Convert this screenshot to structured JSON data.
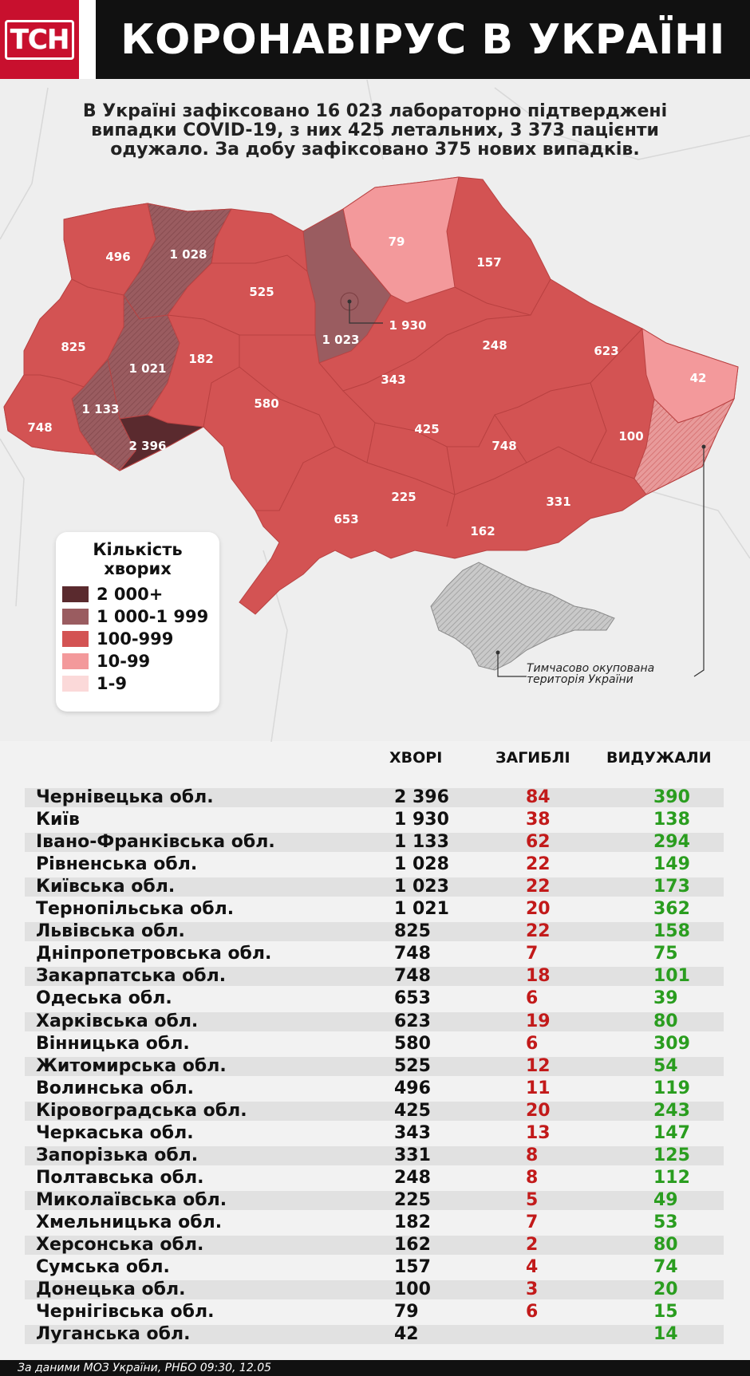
{
  "header": {
    "logo": "ТСН",
    "title": "КОРОНАВІРУС В УКРАЇНІ"
  },
  "intro": {
    "line1": "В Україні зафіксовано 16 023 лабораторно підтверджені",
    "line2": "випадки COVID-19, з них 425 летальних, 3 373 пацієнти",
    "line3": "одужало. За добу зафіксовано 375 нових випадків."
  },
  "map": {
    "labels": {
      "volyn": "496",
      "rivne": "1 028",
      "zhytomyr": "525",
      "kyiv_obl": "1 023",
      "kyiv_city": "1 930",
      "chernihiv": "79",
      "sumy": "157",
      "lviv": "825",
      "ternopil": "1 021",
      "khmelnytskyi": "182",
      "ivano_frankivsk": "1 133",
      "zakarpattia": "748",
      "chernivtsi": "2 396",
      "vinnytsia": "580",
      "cherkasy": "343",
      "poltava": "248",
      "kharkiv": "623",
      "luhansk": "42",
      "kirovohrad": "425",
      "dnipro": "748",
      "donetsk": "100",
      "odesa": "653",
      "mykolaiv": "225",
      "zaporizhzhia": "331",
      "kherson": "162"
    },
    "colors": {
      "c2000": "#5a2a2e",
      "c1000": "#9a5c60",
      "c100": "#d35353",
      "c10": "#f3999b",
      "c1": "#fbd9d9",
      "occupied": "#bdbdbd"
    },
    "occupied_note_line1": "Тимчасово окупована",
    "occupied_note_line2": "територія України"
  },
  "legend": {
    "title_line1": "Кількість",
    "title_line2": "хворих",
    "items": [
      "2 000+",
      "1 000-1 999",
      "100-999",
      "10-99",
      "1-9"
    ]
  },
  "table": {
    "headers": {
      "cases": "ХВОРІ",
      "deaths": "ЗАГИБЛІ",
      "recovered": "ВИДУЖАЛИ"
    },
    "rows": [
      {
        "region": "Чернівецька обл.",
        "cases": "2 396",
        "deaths": "84",
        "recovered": "390"
      },
      {
        "region": "Київ",
        "cases": "1 930",
        "deaths": "38",
        "recovered": "138"
      },
      {
        "region": "Івано-Франківська обл.",
        "cases": "1 133",
        "deaths": "62",
        "recovered": "294"
      },
      {
        "region": "Рівненська обл.",
        "cases": "1 028",
        "deaths": "22",
        "recovered": "149"
      },
      {
        "region": "Київська обл.",
        "cases": "1 023",
        "deaths": "22",
        "recovered": "173"
      },
      {
        "region": "Тернопільська обл.",
        "cases": "1 021",
        "deaths": "20",
        "recovered": "362"
      },
      {
        "region": "Львівська обл.",
        "cases": "825",
        "deaths": "22",
        "recovered": "158"
      },
      {
        "region": "Дніпропетровська обл.",
        "cases": "748",
        "deaths": "7",
        "recovered": "75"
      },
      {
        "region": "Закарпатська обл.",
        "cases": "748",
        "deaths": "18",
        "recovered": "101"
      },
      {
        "region": "Одеська обл.",
        "cases": "653",
        "deaths": "6",
        "recovered": "39"
      },
      {
        "region": "Харківська обл.",
        "cases": "623",
        "deaths": "19",
        "recovered": "80"
      },
      {
        "region": "Вінницька обл.",
        "cases": "580",
        "deaths": "6",
        "recovered": "309"
      },
      {
        "region": "Житомирська обл.",
        "cases": "525",
        "deaths": "12",
        "recovered": "54"
      },
      {
        "region": "Волинська обл.",
        "cases": "496",
        "deaths": "11",
        "recovered": "119"
      },
      {
        "region": "Кіровоградська обл.",
        "cases": "425",
        "deaths": "20",
        "recovered": "243"
      },
      {
        "region": "Черкаська обл.",
        "cases": "343",
        "deaths": "13",
        "recovered": "147"
      },
      {
        "region": "Запорізька обл.",
        "cases": "331",
        "deaths": "8",
        "recovered": "125"
      },
      {
        "region": "Полтавська обл.",
        "cases": "248",
        "deaths": "8",
        "recovered": "112"
      },
      {
        "region": "Миколаївська обл.",
        "cases": "225",
        "deaths": "5",
        "recovered": "49"
      },
      {
        "region": "Хмельницька обл.",
        "cases": "182",
        "deaths": "7",
        "recovered": "53"
      },
      {
        "region": "Херсонська обл.",
        "cases": "162",
        "deaths": "2",
        "recovered": "80"
      },
      {
        "region": "Сумська обл.",
        "cases": "157",
        "deaths": "4",
        "recovered": "74"
      },
      {
        "region": "Донецька обл.",
        "cases": "100",
        "deaths": "3",
        "recovered": "20"
      },
      {
        "region": "Чернігівська обл.",
        "cases": "79",
        "deaths": "6",
        "recovered": "15"
      },
      {
        "region": "Луганська обл.",
        "cases": "42",
        "deaths": "",
        "recovered": "14"
      }
    ]
  },
  "footer": {
    "source": "За даними МОЗ України, РНБО  09:30, 12.05"
  }
}
